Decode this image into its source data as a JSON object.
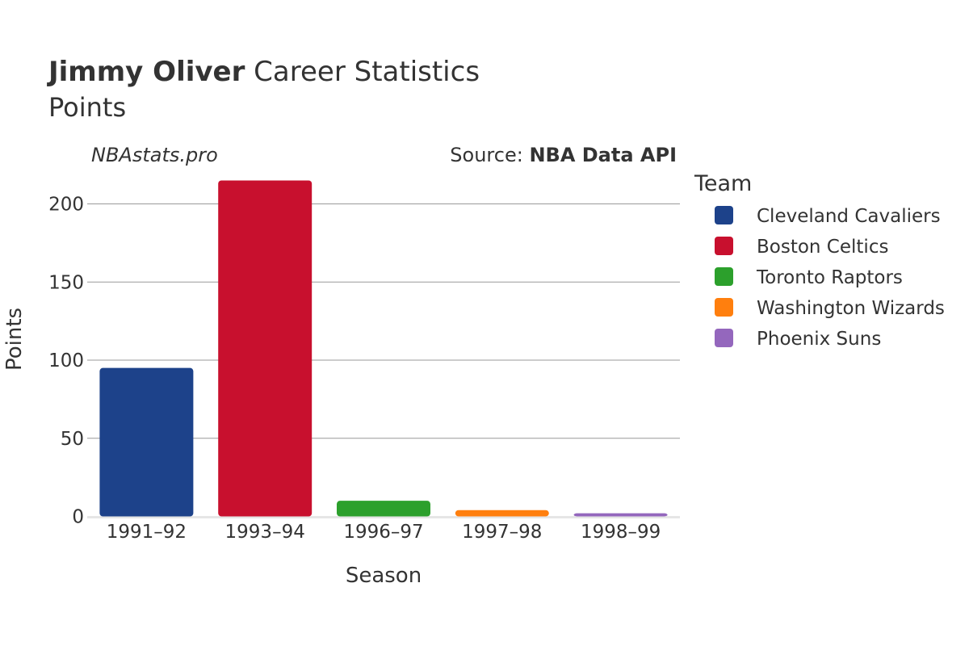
{
  "header": {
    "player": "Jimmy Oliver",
    "title_rest": " Career Statistics",
    "subtitle": "Points",
    "watermark": "NBAstats.pro",
    "source_prefix": "Source: ",
    "source_name": "NBA Data API"
  },
  "legend": {
    "title": "Team"
  },
  "chart_data": {
    "type": "bar",
    "title": "Jimmy Oliver Career Statistics",
    "subtitle": "Points",
    "xlabel": "Season",
    "ylabel": "Points",
    "categories": [
      "1991–92",
      "1993–94",
      "1996–97",
      "1997–98",
      "1998–99"
    ],
    "ylim": [
      0,
      225
    ],
    "yticks": [
      0,
      50,
      100,
      150,
      200
    ],
    "grid": true,
    "legend_position": "right",
    "series": [
      {
        "name": "Cleveland Cavaliers",
        "color": "#1d428a",
        "category": "1991–92",
        "value": 95
      },
      {
        "name": "Boston Celtics",
        "color": "#c8102e",
        "category": "1993–94",
        "value": 215
      },
      {
        "name": "Toronto Raptors",
        "color": "#2ca02c",
        "category": "1996–97",
        "value": 10
      },
      {
        "name": "Washington Wizards",
        "color": "#ff7f0e",
        "category": "1997–98",
        "value": 4
      },
      {
        "name": "Phoenix Suns",
        "color": "#9467bd",
        "category": "1998–99",
        "value": 2
      }
    ]
  }
}
